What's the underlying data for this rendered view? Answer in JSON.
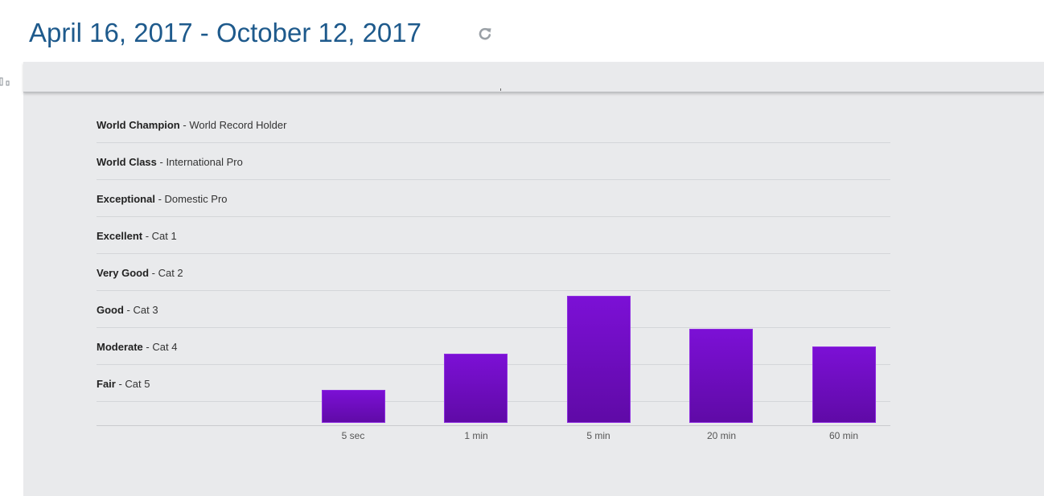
{
  "header": {
    "date_range": "April 16, 2017 - October 12, 2017",
    "refresh_icon": "refresh-icon"
  },
  "colors": {
    "title": "#1e5a8c",
    "panel_bg": "#e9eaec",
    "bar_top": "#7c10d6",
    "bar_bottom": "#5f0aa6",
    "gridline": "#d4d6d9"
  },
  "tiers": [
    {
      "name": "World Champion",
      "desc": " - World Record Holder"
    },
    {
      "name": "World Class",
      "desc": " - International Pro"
    },
    {
      "name": "Exceptional",
      "desc": " - Domestic Pro"
    },
    {
      "name": "Excellent",
      "desc": " - Cat 1"
    },
    {
      "name": "Very Good",
      "desc": " - Cat 2"
    },
    {
      "name": "Good",
      "desc": " - Cat 3"
    },
    {
      "name": "Moderate",
      "desc": " - Cat 4"
    },
    {
      "name": "Fair",
      "desc": " - Cat 5"
    }
  ],
  "chart_data": {
    "type": "bar",
    "categories": [
      "5 sec",
      "1 min",
      "5 min",
      "20 min",
      "60 min"
    ],
    "values": [
      0.9,
      1.9,
      3.5,
      2.6,
      2.1
    ],
    "value_unit": "tier levels above chart baseline (1 = Fair band bottom line, 9 = top of World Champion band)",
    "ylim": [
      0,
      9
    ],
    "ytick_labels": [
      "Fair - Cat 5",
      "Moderate - Cat 4",
      "Good - Cat 3",
      "Very Good - Cat 2",
      "Excellent - Cat 1",
      "Exceptional - Domestic Pro",
      "World Class - International Pro",
      "World Champion - World Record Holder"
    ],
    "grid": true,
    "legend": "none"
  }
}
